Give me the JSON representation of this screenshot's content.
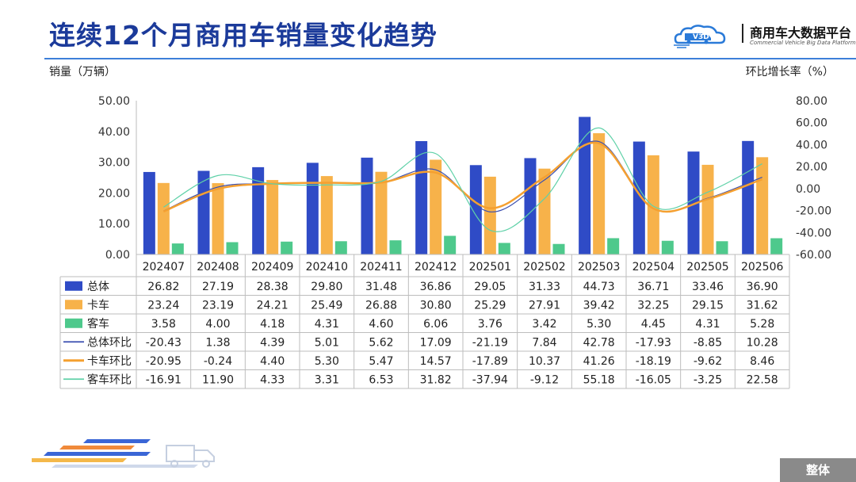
{
  "title": "连续12个月商用车销量变化趋势",
  "logo": {
    "text": "商用车大数据平台",
    "subtitle": "Commercial Vehicle Big Data Platform",
    "mark": "V3D"
  },
  "footer_tag": "整体",
  "colors": {
    "total": "#2f4bc6",
    "truck": "#f7b24a",
    "bus": "#4ec98c",
    "total_mom": "#3b4fb0",
    "truck_mom": "#f5a030",
    "bus_mom": "#5fd1a8",
    "title": "#1b3a9a"
  },
  "chart_data": {
    "type": "bar",
    "categories": [
      "202407",
      "202408",
      "202409",
      "202410",
      "202411",
      "202412",
      "202501",
      "202502",
      "202503",
      "202504",
      "202505",
      "202506"
    ],
    "ylabel": "销量（万辆）",
    "y2label": "环比增长率（%）",
    "ylim": [
      0,
      50
    ],
    "y2lim": [
      -60,
      80
    ],
    "yticks": [
      "0.00",
      "10.00",
      "20.00",
      "30.00",
      "40.00",
      "50.00"
    ],
    "y2ticks": [
      "-60.00",
      "-40.00",
      "-20.00",
      "0.00",
      "20.00",
      "40.00",
      "60.00",
      "80.00"
    ],
    "grid": false,
    "series": [
      {
        "name": "总体",
        "type": "bar",
        "axis": "left",
        "color": "#2f4bc6",
        "values": [
          26.82,
          27.19,
          28.38,
          29.8,
          31.48,
          36.86,
          29.05,
          31.33,
          44.73,
          36.71,
          33.46,
          36.9
        ],
        "labels": [
          "26.82",
          "27.19",
          "28.38",
          "29.80",
          "31.48",
          "36.86",
          "29.05",
          "31.33",
          "44.73",
          "36.71",
          "33.46",
          "36.90"
        ]
      },
      {
        "name": "卡车",
        "type": "bar",
        "axis": "left",
        "color": "#f7b24a",
        "values": [
          23.24,
          23.19,
          24.21,
          25.49,
          26.88,
          30.8,
          25.29,
          27.91,
          39.42,
          32.25,
          29.15,
          31.62
        ],
        "labels": [
          "23.24",
          "23.19",
          "24.21",
          "25.49",
          "26.88",
          "30.80",
          "25.29",
          "27.91",
          "39.42",
          "32.25",
          "29.15",
          "31.62"
        ]
      },
      {
        "name": "客车",
        "type": "bar",
        "axis": "left",
        "color": "#4ec98c",
        "values": [
          3.58,
          4.0,
          4.18,
          4.31,
          4.6,
          6.06,
          3.76,
          3.42,
          5.3,
          4.45,
          4.31,
          5.28
        ],
        "labels": [
          "3.58",
          "4.00",
          "4.18",
          "4.31",
          "4.60",
          "6.06",
          "3.76",
          "3.42",
          "5.30",
          "4.45",
          "4.31",
          "5.28"
        ]
      },
      {
        "name": "总体环比",
        "type": "line",
        "axis": "right",
        "color": "#3b4fb0",
        "values": [
          -20.43,
          1.38,
          4.39,
          5.01,
          5.62,
          17.09,
          -21.19,
          7.84,
          42.78,
          -17.93,
          -8.85,
          10.28
        ],
        "labels": [
          "-20.43",
          "1.38",
          "4.39",
          "5.01",
          "5.62",
          "17.09",
          "-21.19",
          "7.84",
          "42.78",
          "-17.93",
          "-8.85",
          "10.28"
        ]
      },
      {
        "name": "卡车环比",
        "type": "line",
        "axis": "right",
        "color": "#f5a030",
        "values": [
          -20.95,
          -0.24,
          4.4,
          5.3,
          5.47,
          14.57,
          -17.89,
          10.37,
          41.26,
          -18.19,
          -9.62,
          8.46
        ],
        "labels": [
          "-20.95",
          "-0.24",
          "4.40",
          "5.30",
          "5.47",
          "14.57",
          "-17.89",
          "10.37",
          "41.26",
          "-18.19",
          "-9.62",
          "8.46"
        ]
      },
      {
        "name": "客车环比",
        "type": "line",
        "axis": "right",
        "color": "#5fd1a8",
        "values": [
          -16.91,
          11.9,
          4.33,
          3.31,
          6.53,
          31.82,
          -37.94,
          -9.12,
          55.18,
          -16.05,
          -3.25,
          22.58
        ],
        "labels": [
          "-16.91",
          "11.90",
          "4.33",
          "3.31",
          "6.53",
          "31.82",
          "-37.94",
          "-9.12",
          "55.18",
          "-16.05",
          "-3.25",
          "22.58"
        ]
      }
    ]
  }
}
